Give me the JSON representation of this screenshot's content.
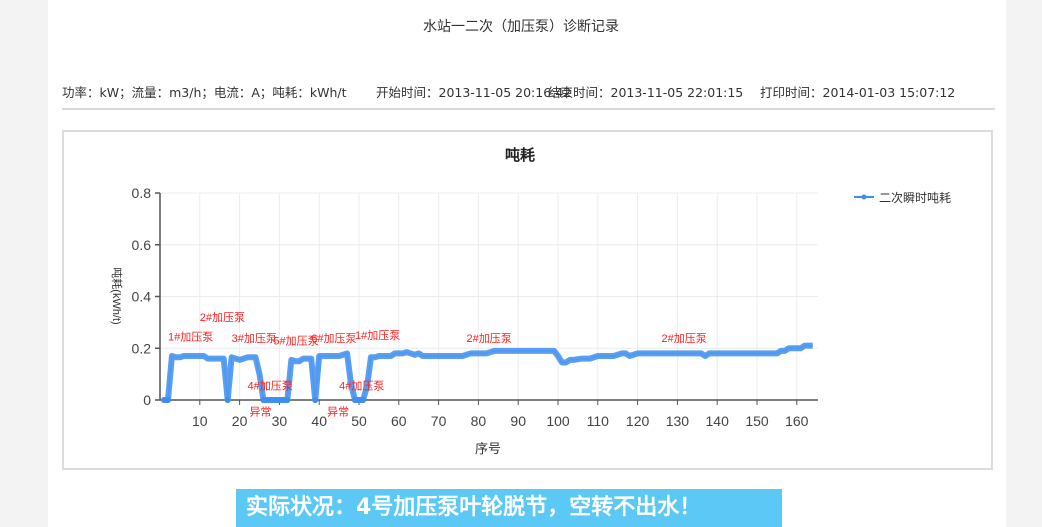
{
  "report": {
    "title": "水站一二次（加压泵）诊断记录",
    "units": "功率：kW；流量：m3/h；电流：A；吨耗：kWh/t",
    "start_time": "开始时间：2013-11-05 20:16:42",
    "end_time": "结束时间：2013-11-05 22:01:15",
    "print_time": "打印时间：2014-01-03 15:07:12"
  },
  "banner": {
    "text": "实际状况：4号加压泵叶轮脱节，空转不出水！",
    "color": "#5bc8f5"
  },
  "chart_data": {
    "type": "line",
    "title": "吨耗",
    "xlabel": "序号",
    "ylabel": "吨耗(kWh/t)",
    "xlim": [
      0,
      165
    ],
    "ylim": [
      0,
      0.8
    ],
    "xticks": [
      10,
      20,
      30,
      40,
      50,
      60,
      70,
      80,
      90,
      100,
      110,
      120,
      130,
      140,
      150,
      160
    ],
    "yticks": [
      0,
      0.2,
      0.4,
      0.6,
      0.8
    ],
    "grid": true,
    "legend_position": "right",
    "series": [
      {
        "name": "二次瞬时吨耗",
        "color": "#3d8ef0",
        "x": [
          1,
          2,
          3,
          4,
          5,
          6,
          7,
          8,
          9,
          10,
          11,
          12,
          13,
          14,
          15,
          16,
          17,
          18,
          19,
          20,
          21,
          22,
          23,
          24,
          25,
          26,
          27,
          28,
          29,
          30,
          31,
          32,
          33,
          34,
          35,
          36,
          37,
          38,
          39,
          40,
          41,
          42,
          43,
          44,
          45,
          46,
          47,
          48,
          49,
          50,
          51,
          52,
          53,
          54,
          55,
          56,
          57,
          58,
          59,
          60,
          61,
          62,
          63,
          64,
          65,
          66,
          67,
          68,
          69,
          70,
          72,
          74,
          76,
          78,
          80,
          82,
          84,
          86,
          88,
          90,
          92,
          94,
          96,
          98,
          99,
          100,
          101,
          102,
          103,
          104,
          106,
          108,
          110,
          112,
          114,
          116,
          117,
          118,
          120,
          122,
          124,
          126,
          128,
          130,
          132,
          134,
          136,
          137,
          138,
          140,
          142,
          144,
          146,
          148,
          150,
          152,
          154,
          155,
          156,
          157,
          158,
          159,
          160,
          161,
          162,
          163,
          164
        ],
        "values": [
          0,
          0,
          0.17,
          0.165,
          0.165,
          0.17,
          0.17,
          0.17,
          0.17,
          0.17,
          0.17,
          0.16,
          0.16,
          0.16,
          0.16,
          0.16,
          0,
          0.165,
          0.16,
          0.155,
          0.16,
          0.165,
          0.165,
          0.165,
          0.1,
          0,
          0,
          0,
          0,
          0,
          0,
          0,
          0.155,
          0.15,
          0.15,
          0.16,
          0.16,
          0.16,
          0,
          0.17,
          0.17,
          0.17,
          0.17,
          0.17,
          0.17,
          0.175,
          0.18,
          0.06,
          0,
          0,
          0,
          0.05,
          0.165,
          0.165,
          0.17,
          0.17,
          0.17,
          0.17,
          0.18,
          0.18,
          0.18,
          0.185,
          0.18,
          0.175,
          0.18,
          0.17,
          0.17,
          0.17,
          0.17,
          0.17,
          0.17,
          0.17,
          0.17,
          0.18,
          0.18,
          0.18,
          0.19,
          0.19,
          0.19,
          0.19,
          0.19,
          0.19,
          0.19,
          0.19,
          0.19,
          0.17,
          0.145,
          0.145,
          0.155,
          0.155,
          0.16,
          0.16,
          0.17,
          0.17,
          0.17,
          0.18,
          0.18,
          0.17,
          0.18,
          0.18,
          0.18,
          0.18,
          0.18,
          0.18,
          0.18,
          0.18,
          0.18,
          0.17,
          0.18,
          0.18,
          0.18,
          0.18,
          0.18,
          0.18,
          0.18,
          0.18,
          0.18,
          0.18,
          0.19,
          0.19,
          0.2,
          0.2,
          0.2,
          0.2,
          0.21,
          0.21,
          0.21
        ]
      }
    ],
    "annotations": [
      {
        "text": "1#加压泵",
        "x": 2,
        "y": 0.23,
        "color": "#ff2020"
      },
      {
        "text": "2#加压泵",
        "x": 10,
        "y": 0.305,
        "color": "#ff2020"
      },
      {
        "text": "3#加压泵",
        "x": 18,
        "y": 0.225,
        "color": "#ff2020"
      },
      {
        "text": "4#加压泵",
        "x": 22,
        "y": 0.04,
        "color": "#ff2020"
      },
      {
        "text": "异常",
        "x": 22.5,
        "y": -0.06,
        "color": "#ff2020"
      },
      {
        "text": "5#加压泵",
        "x": 28.5,
        "y": 0.215,
        "color": "#ff2020"
      },
      {
        "text": "6#加压泵",
        "x": 38,
        "y": 0.225,
        "color": "#ff2020"
      },
      {
        "text": "4#加压泵",
        "x": 45,
        "y": 0.04,
        "color": "#ff2020"
      },
      {
        "text": "异常",
        "x": 42,
        "y": -0.06,
        "color": "#ff2020"
      },
      {
        "text": "1#加压泵",
        "x": 49,
        "y": 0.235,
        "color": "#ff2020"
      },
      {
        "text": "2#加压泵",
        "x": 77,
        "y": 0.225,
        "color": "#ff2020"
      },
      {
        "text": "2#加压泵",
        "x": 126,
        "y": 0.225,
        "color": "#ff2020"
      }
    ]
  }
}
